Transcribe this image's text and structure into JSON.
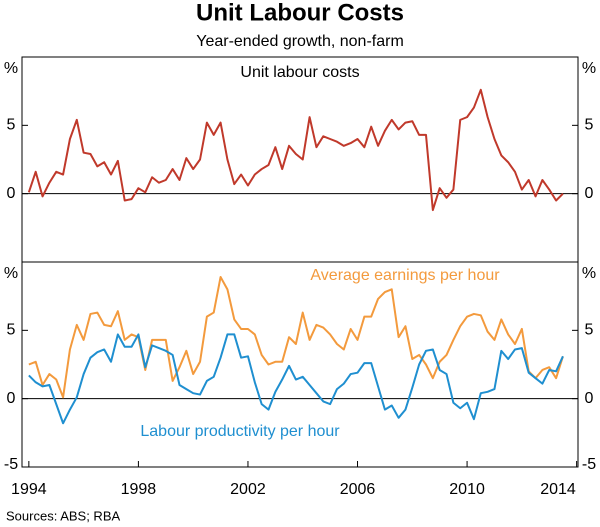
{
  "title": "Unit Labour Costs",
  "subtitle": "Year-ended growth, non-farm",
  "sources": "Sources:   ABS; RBA",
  "chart_data": [
    {
      "type": "line",
      "ylabel": "%",
      "x": [
        1994,
        1994.25,
        1994.5,
        1994.75,
        1995,
        1995.25,
        1995.5,
        1995.75,
        1996,
        1996.25,
        1996.5,
        1996.75,
        1997,
        1997.25,
        1997.5,
        1997.75,
        1998,
        1998.25,
        1998.5,
        1998.75,
        1999,
        1999.25,
        1999.5,
        1999.75,
        2000,
        2000.25,
        2000.5,
        2000.75,
        2001,
        2001.25,
        2001.5,
        2001.75,
        2002,
        2002.25,
        2002.5,
        2002.75,
        2003,
        2003.25,
        2003.5,
        2003.75,
        2004,
        2004.25,
        2004.5,
        2004.75,
        2005,
        2005.25,
        2005.5,
        2005.75,
        2006,
        2006.25,
        2006.5,
        2006.75,
        2007,
        2007.25,
        2007.5,
        2007.75,
        2008,
        2008.25,
        2008.5,
        2008.75,
        2009,
        2009.25,
        2009.5,
        2009.75,
        2010,
        2010.25,
        2010.5,
        2010.75,
        2011,
        2011.25,
        2011.5,
        2011.75,
        2012,
        2012.25,
        2012.5,
        2012.75,
        2013,
        2013.25,
        2013.5
      ],
      "xlim": [
        1993.75,
        2014.05
      ],
      "ylim": [
        -5,
        10
      ],
      "yticks": [
        0,
        5
      ],
      "series": [
        {
          "name": "Unit labour costs",
          "color": "#c0392b",
          "values": [
            0.1,
            1.6,
            -0.2,
            0.8,
            1.6,
            1.4,
            4.0,
            5.4,
            3.0,
            2.9,
            2.0,
            2.3,
            1.4,
            2.4,
            -0.5,
            -0.4,
            0.4,
            0.1,
            1.2,
            0.8,
            1.0,
            1.8,
            1.0,
            2.6,
            1.8,
            2.5,
            5.2,
            4.3,
            5.2,
            2.5,
            0.7,
            1.4,
            0.6,
            1.4,
            1.8,
            2.1,
            3.4,
            1.8,
            3.5,
            2.9,
            2.5,
            5.6,
            3.4,
            4.2,
            4.0,
            3.8,
            3.5,
            3.7,
            4.0,
            3.4,
            4.9,
            3.5,
            4.6,
            5.4,
            4.7,
            5.2,
            5.3,
            4.3,
            4.3,
            -1.2,
            0.4,
            -0.3,
            0.3,
            5.4,
            5.6,
            6.3,
            7.6,
            5.6,
            4.0,
            2.8,
            2.3,
            1.6,
            0.3,
            1.0,
            -0.2,
            1.0,
            0.3,
            -0.5,
            0.0
          ]
        }
      ]
    },
    {
      "type": "line",
      "ylabel": "%",
      "x": [
        1994,
        1994.25,
        1994.5,
        1994.75,
        1995,
        1995.25,
        1995.5,
        1995.75,
        1996,
        1996.25,
        1996.5,
        1996.75,
        1997,
        1997.25,
        1997.5,
        1997.75,
        1998,
        1998.25,
        1998.5,
        1998.75,
        1999,
        1999.25,
        1999.5,
        1999.75,
        2000,
        2000.25,
        2000.5,
        2000.75,
        2001,
        2001.25,
        2001.5,
        2001.75,
        2002,
        2002.25,
        2002.5,
        2002.75,
        2003,
        2003.25,
        2003.5,
        2003.75,
        2004,
        2004.25,
        2004.5,
        2004.75,
        2005,
        2005.25,
        2005.5,
        2005.75,
        2006,
        2006.25,
        2006.5,
        2006.75,
        2007,
        2007.25,
        2007.5,
        2007.75,
        2008,
        2008.25,
        2008.5,
        2008.75,
        2009,
        2009.25,
        2009.5,
        2009.75,
        2010,
        2010.25,
        2010.5,
        2010.75,
        2011,
        2011.25,
        2011.5,
        2011.75,
        2012,
        2012.25,
        2012.5,
        2012.75,
        2013,
        2013.25,
        2013.5
      ],
      "xlim": [
        1993.75,
        2014.05
      ],
      "xticks": [
        1994,
        1998,
        2002,
        2006,
        2010,
        2014
      ],
      "ylim": [
        -5,
        10
      ],
      "yticks": [
        -5,
        0,
        5
      ],
      "series": [
        {
          "name": "Average earnings per hour",
          "color": "#f39a3d",
          "values": [
            2.5,
            2.7,
            1.0,
            1.8,
            1.4,
            0.1,
            3.6,
            5.4,
            4.3,
            6.2,
            6.3,
            5.4,
            5.3,
            6.4,
            4.3,
            4.7,
            4.5,
            2.1,
            4.3,
            4.3,
            4.3,
            1.3,
            2.3,
            3.5,
            1.8,
            2.7,
            6.0,
            6.3,
            8.9,
            8.0,
            5.8,
            5.1,
            5.1,
            4.7,
            3.2,
            2.5,
            2.7,
            2.7,
            4.5,
            4.0,
            6.3,
            4.3,
            5.4,
            5.2,
            4.7,
            4.0,
            3.6,
            5.1,
            4.3,
            6.0,
            6.0,
            7.3,
            7.8,
            8.0,
            4.5,
            5.3,
            2.9,
            3.2,
            2.5,
            1.5,
            2.7,
            3.2,
            4.3,
            5.3,
            6.0,
            6.2,
            6.1,
            4.9,
            4.3,
            5.8,
            4.7,
            4.0,
            5.1,
            2.0,
            1.5,
            2.1,
            2.3,
            1.5,
            3.1
          ]
        },
        {
          "name": "Labour productivity per hour",
          "color": "#1f8fd0",
          "values": [
            1.7,
            1.2,
            0.9,
            1.0,
            -0.4,
            -1.8,
            -0.8,
            0.1,
            1.8,
            3.0,
            3.4,
            3.6,
            2.7,
            4.7,
            3.8,
            3.8,
            4.7,
            2.3,
            3.9,
            3.7,
            3.5,
            3.2,
            1.0,
            0.7,
            0.4,
            0.3,
            1.3,
            1.6,
            3.0,
            4.7,
            4.7,
            3.0,
            3.1,
            1.2,
            -0.4,
            -0.8,
            0.5,
            1.4,
            2.4,
            1.4,
            1.6,
            1.0,
            0.4,
            -0.2,
            -0.4,
            0.7,
            1.1,
            1.8,
            1.9,
            2.6,
            2.6,
            0.9,
            -0.8,
            -0.5,
            -1.4,
            -0.8,
            0.8,
            2.5,
            3.5,
            3.6,
            2.1,
            1.8,
            -0.3,
            -0.7,
            -0.3,
            -1.5,
            0.4,
            0.5,
            0.7,
            3.5,
            2.9,
            3.6,
            3.7,
            1.9,
            1.5,
            1.1,
            2.1,
            2.0,
            3.1
          ]
        }
      ]
    }
  ]
}
